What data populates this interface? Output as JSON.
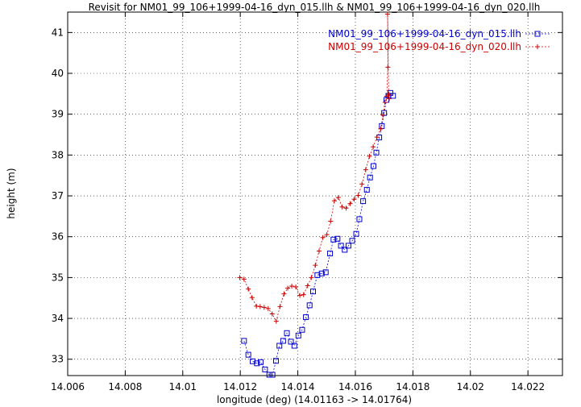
{
  "chart_data": {
    "type": "line",
    "title": "Revisit for NM01_99_106+1999-04-16_dyn_015.llh & NM01_99_106+1999-04-16_dyn_020.llh",
    "xlabel": "longitude (deg) (14.01163 -> 14.01764)",
    "ylabel": "height (m)",
    "xlim": [
      14.006,
      14.0232
    ],
    "ylim": [
      32.6,
      41.5
    ],
    "xticks": [
      14.006,
      14.008,
      14.01,
      14.012,
      14.014,
      14.016,
      14.018,
      14.02,
      14.022
    ],
    "xtick_labels": [
      "14.006",
      "14.008",
      "14.01",
      "14.012",
      "14.014",
      "14.016",
      "14.018",
      "14.02",
      "14.022"
    ],
    "yticks": [
      33,
      34,
      35,
      36,
      37,
      38,
      39,
      40,
      41
    ],
    "ytick_labels": [
      "33",
      "34",
      "35",
      "36",
      "37",
      "38",
      "39",
      "40",
      "41"
    ],
    "grid": true,
    "legend_position": "top-right",
    "series": [
      {
        "name": "NM01_99_106+1999-04-16_dyn_015.llh",
        "color": "#0000cc",
        "marker": "square",
        "x": [
          14.01213,
          14.01228,
          14.01243,
          14.01258,
          14.01271,
          14.01286,
          14.01301,
          14.01312,
          14.01324,
          14.01336,
          14.01349,
          14.01362,
          14.01376,
          14.01388,
          14.01402,
          14.01415,
          14.01428,
          14.01441,
          14.01453,
          14.01468,
          14.01483,
          14.01497,
          14.01512,
          14.01524,
          14.01538,
          14.0155,
          14.01563,
          14.01576,
          14.01589,
          14.01603,
          14.01614,
          14.01627,
          14.0164,
          14.01651,
          14.01663,
          14.01673,
          14.01683,
          14.01692,
          14.017,
          14.01708,
          14.01715,
          14.01722,
          14.01731
        ],
        "y": [
          33.45,
          33.11,
          32.95,
          32.9,
          32.93,
          32.75,
          32.62,
          32.62,
          32.96,
          33.33,
          33.45,
          33.64,
          33.43,
          33.33,
          33.58,
          33.72,
          34.03,
          34.32,
          34.66,
          35.06,
          35.1,
          35.13,
          35.59,
          35.93,
          35.95,
          35.78,
          35.68,
          35.78,
          35.9,
          36.07,
          36.43,
          36.87,
          37.15,
          37.45,
          37.73,
          38.06,
          38.43,
          38.71,
          39.03,
          39.35,
          39.45,
          39.52,
          39.45
        ]
      },
      {
        "name": "NM01_99_106+1999-04-16_dyn_020.llh",
        "color": "#cc0000",
        "marker": "plus",
        "x": [
          14.01198,
          14.01213,
          14.01228,
          14.01241,
          14.01256,
          14.01269,
          14.01283,
          14.01297,
          14.01311,
          14.01325,
          14.01338,
          14.01352,
          14.01365,
          14.01379,
          14.01393,
          14.01407,
          14.0142,
          14.01434,
          14.01447,
          14.01461,
          14.01474,
          14.01487,
          14.01501,
          14.01514,
          14.01527,
          14.01541,
          14.01554,
          14.01568,
          14.01582,
          14.01596,
          14.0161,
          14.01623,
          14.01636,
          14.01649,
          14.01662,
          14.01675,
          14.01688,
          14.01696,
          14.01703,
          14.01709,
          14.01713,
          14.01712,
          14.01716,
          14.01718
        ],
        "y": [
          35.0,
          34.96,
          34.72,
          34.51,
          34.3,
          34.29,
          34.27,
          34.24,
          34.11,
          33.93,
          34.29,
          34.6,
          34.74,
          34.79,
          34.77,
          34.56,
          34.58,
          34.8,
          35.0,
          35.3,
          35.65,
          35.98,
          36.05,
          36.38,
          36.88,
          36.96,
          36.73,
          36.7,
          36.81,
          36.92,
          37.01,
          37.29,
          37.64,
          37.97,
          38.2,
          38.44,
          38.64,
          38.98,
          39.29,
          39.44,
          40.15,
          41.45,
          39.47,
          39.38
        ]
      }
    ]
  }
}
